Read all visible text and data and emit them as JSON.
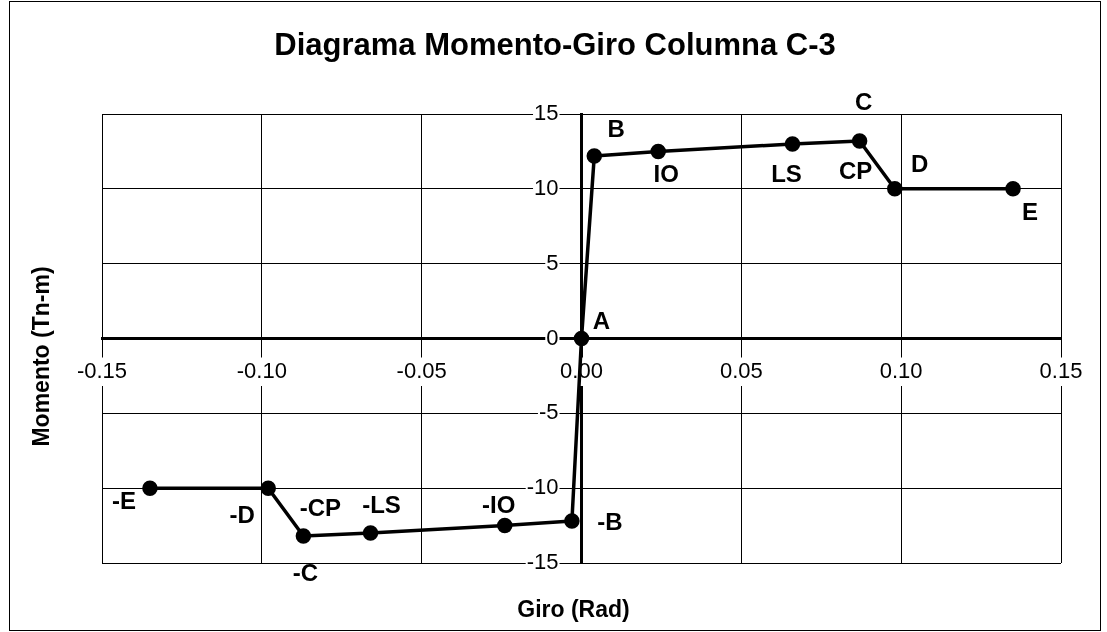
{
  "chart_data": {
    "type": "line",
    "title": "Diagrama Momento-Giro Columna C-3",
    "xlabel": "Giro (Rad)",
    "ylabel": "Momento (Tn-m)",
    "x": [
      -0.135,
      -0.098,
      -0.087,
      -0.066,
      -0.024,
      -0.003,
      0,
      0.004,
      0.024,
      0.066,
      0.087,
      0.098,
      0.135
    ],
    "series": [
      {
        "color": "#000000",
        "values": [
          -10,
          -10,
          -13.2,
          -13,
          -12.5,
          -12.2,
          0,
          12.2,
          12.5,
          13,
          13.2,
          10,
          10
        ]
      }
    ],
    "xlim": [
      -0.15,
      0.15
    ],
    "xticks": [
      -0.15,
      {
        "value": -0.1,
        "label": "-0.10"
      },
      -0.05,
      {
        "value": 0,
        "label": "0.00"
      },
      0.05,
      {
        "value": 0.1,
        "label": "0.10"
      },
      0.15
    ],
    "ylim": [
      -15,
      15
    ],
    "yticks": [
      -15,
      -10,
      -5,
      0,
      5,
      10,
      15
    ],
    "grid": true,
    "marker": "circle",
    "line_style": "solid",
    "annotations": [
      {
        "text": "A",
        "x": 0,
        "y": 0
      },
      {
        "text": "B",
        "x": 0.004,
        "y": 12.2
      },
      {
        "text": "IO",
        "x": 0.024,
        "y": 12.5
      },
      {
        "text": "LS",
        "x": 0.066,
        "y": 13
      },
      {
        "text": "C",
        "x": 0.087,
        "y": 13.2
      },
      {
        "text": "CP",
        "x": 0.087,
        "y": 13.2
      },
      {
        "text": "D",
        "x": 0.098,
        "y": 10
      },
      {
        "text": "E",
        "x": 0.135,
        "y": 10
      },
      {
        "text": "-B",
        "x": -0.003,
        "y": -12.2
      },
      {
        "text": "-IO",
        "x": -0.024,
        "y": -12.5
      },
      {
        "text": "-LS",
        "x": -0.066,
        "y": -13
      },
      {
        "text": "-C",
        "x": -0.087,
        "y": -13.2
      },
      {
        "text": "-CP",
        "x": -0.087,
        "y": -13.2
      },
      {
        "text": "-D",
        "x": -0.098,
        "y": -10
      },
      {
        "text": "-E",
        "x": -0.135,
        "y": -10
      }
    ]
  }
}
